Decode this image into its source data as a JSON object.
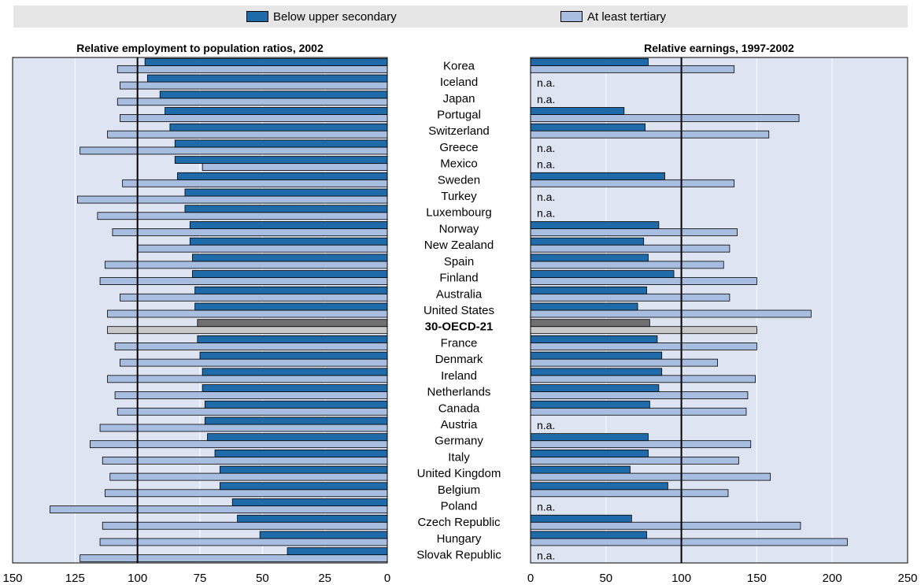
{
  "legend": {
    "below_label": "Below upper secondary",
    "tertiary_label": "At least tertiary"
  },
  "colors": {
    "below": "#1f6aa8",
    "tertiary": "#a8bee0",
    "oecd_below": "#707070",
    "oecd_tertiary": "#c8c8c8",
    "panel_bg": "#dfe4f3",
    "gridline": "#ffffff"
  },
  "chart_data": [
    {
      "type": "bar",
      "title": "Relative employment to population ratios, 2002",
      "orientation": "horizontal",
      "x_reversed": true,
      "xlim": [
        0,
        150
      ],
      "ticks": [
        150,
        125,
        100,
        75,
        50,
        25,
        0
      ],
      "reference_line": 100,
      "categories": [
        "Korea",
        "Iceland",
        "Japan",
        "Portugal",
        "Switzerland",
        "Greece",
        "Mexico",
        "Sweden",
        "Turkey",
        "Luxembourg",
        "Norway",
        "New Zealand",
        "Spain",
        "Finland",
        "Australia",
        "United States",
        "30-OECD-21",
        "France",
        "Denmark",
        "Ireland",
        "Netherlands",
        "Canada",
        "Austria",
        "Germany",
        "Italy",
        "United Kingdom",
        "Belgium",
        "Poland",
        "Czech Republic",
        "Hungary",
        "Slovak Republic"
      ],
      "series": [
        {
          "name": "Below upper secondary",
          "values": [
            97,
            96,
            91,
            89,
            87,
            85,
            85,
            84,
            81,
            81,
            79,
            79,
            78,
            78,
            77,
            77,
            76,
            76,
            75,
            74,
            74,
            73,
            73,
            72,
            69,
            67,
            67,
            62,
            60,
            51,
            40
          ]
        },
        {
          "name": "At least tertiary",
          "values": [
            108,
            107,
            108,
            107,
            112,
            123,
            74,
            106,
            124,
            116,
            110,
            100,
            113,
            115,
            107,
            112,
            112,
            109,
            107,
            112,
            109,
            108,
            115,
            119,
            114,
            111,
            113,
            135,
            114,
            115,
            123
          ]
        }
      ],
      "highlight_category": "30-OECD-21"
    },
    {
      "type": "bar",
      "title": "Relative earnings, 1997-2002",
      "orientation": "horizontal",
      "xlim": [
        0,
        250
      ],
      "ticks": [
        0,
        50,
        100,
        150,
        200,
        250
      ],
      "reference_line": 100,
      "categories": [
        "Korea",
        "Iceland",
        "Japan",
        "Portugal",
        "Switzerland",
        "Greece",
        "Mexico",
        "Sweden",
        "Turkey",
        "Luxembourg",
        "Norway",
        "New Zealand",
        "Spain",
        "Finland",
        "Australia",
        "United States",
        "30-OECD-21",
        "France",
        "Denmark",
        "Ireland",
        "Netherlands",
        "Canada",
        "Austria",
        "Germany",
        "Italy",
        "United Kingdom",
        "Belgium",
        "Poland",
        "Czech Republic",
        "Hungary",
        "Slovak Republic"
      ],
      "na_label": "n.a.",
      "series": [
        {
          "name": "Below upper secondary",
          "values": [
            78,
            null,
            null,
            62,
            76,
            null,
            null,
            89,
            null,
            null,
            85,
            75,
            78,
            95,
            77,
            71,
            79,
            84,
            87,
            87,
            85,
            79,
            null,
            78,
            78,
            66,
            91,
            null,
            67,
            77,
            null
          ]
        },
        {
          "name": "At least tertiary",
          "values": [
            135,
            null,
            null,
            178,
            158,
            null,
            null,
            135,
            null,
            null,
            137,
            132,
            128,
            150,
            132,
            186,
            150,
            150,
            124,
            149,
            144,
            143,
            null,
            146,
            138,
            159,
            131,
            null,
            179,
            210,
            null
          ]
        }
      ],
      "highlight_category": "30-OECD-21"
    }
  ]
}
